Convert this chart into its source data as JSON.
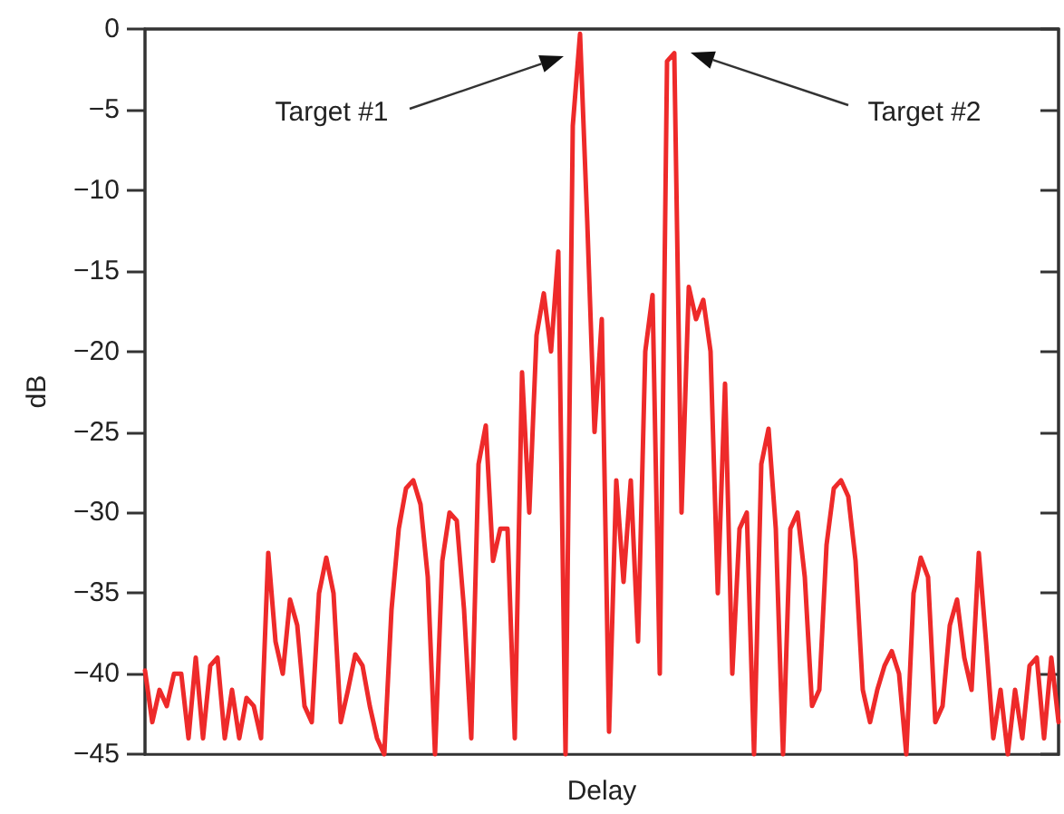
{
  "chart_data": {
    "type": "line",
    "xlabel": "Delay",
    "ylabel": "dB",
    "categories": [
      null,
      null,
      null,
      null,
      null,
      null,
      null,
      null,
      null,
      null,
      null,
      null,
      null,
      null,
      null,
      null,
      null,
      null,
      null,
      null,
      null,
      null,
      null,
      null,
      null,
      null,
      null,
      null,
      null,
      null,
      null,
      null,
      null,
      null,
      null,
      null,
      null,
      null,
      null,
      null,
      null,
      null,
      null,
      null,
      null,
      null,
      null,
      null,
      null,
      null,
      null,
      null,
      null,
      null,
      null,
      null,
      null,
      null,
      null,
      null,
      null,
      null,
      null,
      null,
      null,
      null,
      null,
      null,
      null,
      null,
      null,
      null,
      null,
      null,
      null,
      null,
      null,
      null,
      null,
      null,
      null,
      null,
      null,
      null,
      null,
      null,
      null,
      null,
      null,
      null,
      null,
      null,
      null,
      null,
      null,
      null,
      null,
      null,
      null,
      null,
      null,
      null,
      null,
      null,
      null,
      null,
      null,
      null,
      null,
      null,
      null,
      null,
      null,
      null,
      null,
      null,
      null,
      null,
      null,
      null,
      null,
      null,
      null,
      null,
      null,
      null,
      null
    ],
    "series": [
      {
        "color": "#ee2a2a",
        "values": [
          -39.8,
          -43,
          -41,
          -42,
          -40,
          -40,
          -44,
          -39,
          -44,
          -39.5,
          -39,
          -44,
          -41,
          -44,
          -41.5,
          -42,
          -44,
          -32.5,
          -38,
          -40,
          -35.4,
          -37,
          -42,
          -43,
          -35,
          -32.8,
          -35,
          -43,
          -41,
          -38.8,
          -39.5,
          -42,
          -44,
          -45,
          -36,
          -31,
          -28.5,
          -28,
          -29.5,
          -34,
          -45,
          -33,
          -30,
          -30.5,
          -36,
          -44,
          -27,
          -24.6,
          -33,
          -31,
          -31,
          -44,
          -21.3,
          -30,
          -19,
          -16.4,
          -20,
          -13.8,
          -45,
          -6,
          -0.3,
          -12,
          -25,
          -18,
          -43.6,
          -28,
          -34.3,
          -28,
          -38,
          -20,
          -16.5,
          -40,
          -2,
          -1.5,
          -30,
          -16,
          -18,
          -16.8,
          -20,
          -35,
          -22,
          -40,
          -31,
          -30,
          -45,
          -27,
          -24.8,
          -31,
          -45,
          -31,
          -30,
          -34,
          -42,
          -41,
          -32,
          -28.5,
          -28,
          -29,
          -33,
          -41,
          -43,
          -41,
          -39.5,
          -38.6,
          -40,
          -45,
          -35,
          -32.8,
          -34,
          -43,
          -42,
          -37,
          -35.4,
          -39,
          -41,
          -32.5,
          -38,
          -44,
          -41,
          -45,
          -41,
          -44,
          -39.5,
          -39,
          -44,
          -39,
          -43
        ]
      }
    ],
    "ylim": [
      -45,
      0
    ],
    "yticks": [
      -45,
      -40,
      -35,
      -30,
      -25,
      -20,
      -15,
      -10,
      -5,
      0
    ],
    "grid": false,
    "marker": "none",
    "line_style": "solid",
    "annotations": [
      "Target #1",
      "Target #2"
    ]
  }
}
